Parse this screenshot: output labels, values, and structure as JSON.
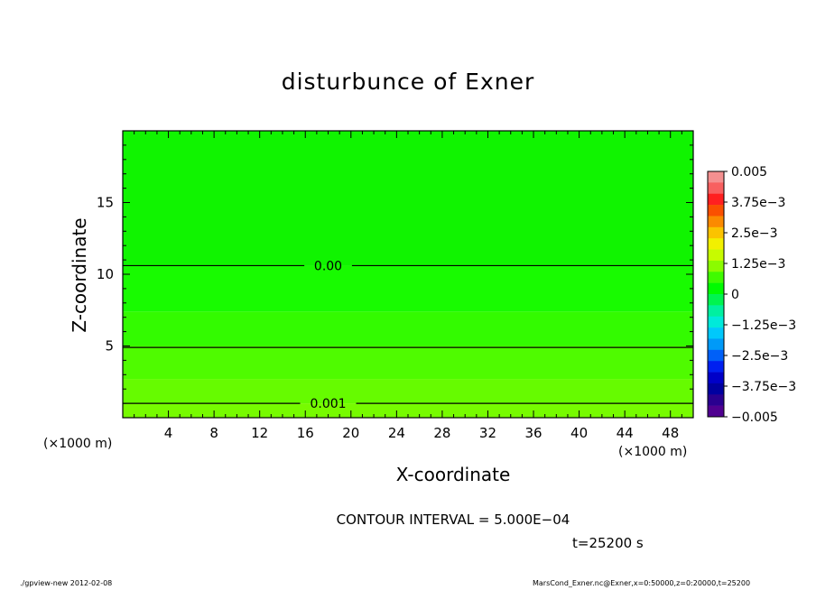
{
  "chart_data": {
    "type": "heatmap",
    "title": "disturbunce of Exner",
    "xlabel": "X-coordinate",
    "ylabel": "Z-coordinate",
    "x_unit": "(×1000 m)",
    "xlim": [
      0,
      50
    ],
    "ylim": [
      0,
      20
    ],
    "x_ticks": [
      4,
      8,
      12,
      16,
      20,
      24,
      28,
      32,
      36,
      40,
      44,
      48
    ],
    "x_tick_labels": [
      "4",
      "8",
      "12",
      "16",
      "20",
      "24",
      "28",
      "32",
      "36",
      "40",
      "44",
      "48"
    ],
    "y_ticks": [
      5,
      10,
      15
    ],
    "y_tick_labels": [
      "5",
      "10",
      "15"
    ],
    "bands": [
      {
        "z0": 0.0,
        "z1": 1.0,
        "color": "#77fb00"
      },
      {
        "z0": 1.0,
        "z1": 2.7,
        "color": "#66fb00"
      },
      {
        "z0": 2.7,
        "z1": 5.0,
        "color": "#4ffb00"
      },
      {
        "z0": 5.0,
        "z1": 7.4,
        "color": "#33fb00"
      },
      {
        "z0": 7.4,
        "z1": 10.6,
        "color": "#18fb00"
      },
      {
        "z0": 10.6,
        "z1": 20.0,
        "color": "#10f400"
      }
    ],
    "contours": [
      {
        "z": 10.6,
        "label": "0.00",
        "label_x": 18.0
      },
      {
        "z": 4.9,
        "label": "",
        "label_x": 0
      },
      {
        "z": 1.0,
        "label": "0.001",
        "label_x": 18.0
      }
    ],
    "colorbar": {
      "range": [
        -0.005,
        0.005
      ],
      "tick_values": [
        0.005,
        0.00375,
        0.0025,
        0.00125,
        0,
        -0.00125,
        -0.0025,
        -0.00375,
        -0.005
      ],
      "tick_labels": [
        "0.005",
        "3.75e−3",
        "2.5e−3",
        "1.25e−3",
        "0",
        "−1.25e−3",
        "−2.5e−3",
        "−3.75e−3",
        "−0.005"
      ],
      "colors": [
        "#f49090",
        "#f86060",
        "#ff2020",
        "#fa5000",
        "#fb8a00",
        "#fbc300",
        "#f2f000",
        "#c7fb00",
        "#8bfb00",
        "#3ffb00",
        "#00fb00",
        "#00f44f",
        "#00f0a0",
        "#00eada",
        "#00c8fb",
        "#009af8",
        "#0060f8",
        "#0020f0",
        "#0000c8",
        "#0000a0",
        "#2a0090",
        "#500090"
      ]
    }
  },
  "labels": {
    "x_unit_left": "(×1000 m)",
    "x_unit_right": "(×1000 m)",
    "contour_interval": "CONTOUR INTERVAL = 5.000E−04",
    "timestamp": "t=25200 s",
    "footer_left": "./gpview-new   2012-02-08",
    "footer_right": "MarsCond_Exner.nc@Exner,x=0:50000,z=0:20000,t=25200"
  }
}
